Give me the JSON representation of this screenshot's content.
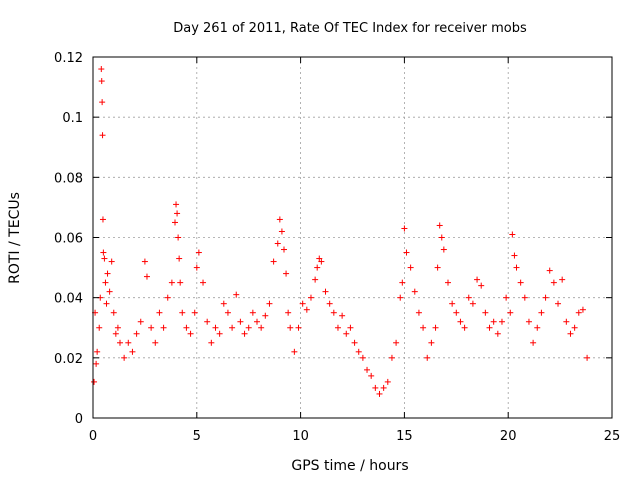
{
  "chart_data": {
    "type": "scatter",
    "title": "Day 261 of 2011, Rate Of TEC Index for receiver mobs",
    "xlabel": "GPS time / hours",
    "ylabel": "ROTI / TECUs",
    "xlim": [
      0,
      25
    ],
    "ylim": [
      0,
      0.12
    ],
    "xticks": [
      0,
      5,
      10,
      15,
      20,
      25
    ],
    "xtick_labels": [
      "0",
      "5",
      "10",
      "15",
      "20",
      "25"
    ],
    "yticks": [
      0,
      0.02,
      0.04,
      0.06,
      0.08,
      0.1,
      0.12
    ],
    "ytick_labels": [
      "0",
      "0.02",
      "0.04",
      "0.06",
      "0.08",
      "0.1",
      "0.12"
    ],
    "grid": true,
    "marker": "+",
    "color": "#ff0000",
    "series": [
      {
        "name": "ROTI",
        "x": [
          0.05,
          0.1,
          0.15,
          0.2,
          0.3,
          0.35,
          0.4,
          0.42,
          0.44,
          0.46,
          0.48,
          0.5,
          0.55,
          0.6,
          0.65,
          0.7,
          0.8,
          0.9,
          1.0,
          1.1,
          1.2,
          1.3,
          1.5,
          1.7,
          1.9,
          2.1,
          2.3,
          2.5,
          2.6,
          2.8,
          3.0,
          3.2,
          3.4,
          3.6,
          3.8,
          3.95,
          4.0,
          4.05,
          4.1,
          4.15,
          4.2,
          4.3,
          4.5,
          4.7,
          4.9,
          5.0,
          5.1,
          5.3,
          5.5,
          5.7,
          5.9,
          6.1,
          6.3,
          6.5,
          6.7,
          6.9,
          7.1,
          7.3,
          7.5,
          7.7,
          7.9,
          8.1,
          8.3,
          8.5,
          8.7,
          8.9,
          9.0,
          9.1,
          9.2,
          9.3,
          9.4,
          9.5,
          9.7,
          9.9,
          10.1,
          10.3,
          10.5,
          10.7,
          10.8,
          10.9,
          11.0,
          11.2,
          11.4,
          11.6,
          11.8,
          12.0,
          12.2,
          12.4,
          12.6,
          12.8,
          13.0,
          13.2,
          13.4,
          13.6,
          13.8,
          14.0,
          14.2,
          14.4,
          14.6,
          14.8,
          14.9,
          15.0,
          15.1,
          15.3,
          15.5,
          15.7,
          15.9,
          16.1,
          16.3,
          16.5,
          16.6,
          16.7,
          16.8,
          16.9,
          17.1,
          17.3,
          17.5,
          17.7,
          17.9,
          18.1,
          18.3,
          18.5,
          18.7,
          18.9,
          19.1,
          19.3,
          19.5,
          19.7,
          19.9,
          20.1,
          20.2,
          20.3,
          20.4,
          20.6,
          20.8,
          21.0,
          21.2,
          21.4,
          21.6,
          21.8,
          22.0,
          22.2,
          22.4,
          22.6,
          22.8,
          23.0,
          23.2,
          23.4,
          23.6,
          23.8
        ],
        "y": [
          0.012,
          0.035,
          0.018,
          0.022,
          0.03,
          0.04,
          0.116,
          0.112,
          0.105,
          0.094,
          0.066,
          0.055,
          0.053,
          0.045,
          0.038,
          0.048,
          0.042,
          0.052,
          0.035,
          0.028,
          0.03,
          0.025,
          0.02,
          0.025,
          0.022,
          0.028,
          0.032,
          0.052,
          0.047,
          0.03,
          0.025,
          0.035,
          0.03,
          0.04,
          0.045,
          0.065,
          0.071,
          0.068,
          0.06,
          0.053,
          0.045,
          0.035,
          0.03,
          0.028,
          0.035,
          0.05,
          0.055,
          0.045,
          0.032,
          0.025,
          0.03,
          0.028,
          0.038,
          0.035,
          0.03,
          0.041,
          0.032,
          0.028,
          0.03,
          0.035,
          0.032,
          0.03,
          0.034,
          0.038,
          0.052,
          0.058,
          0.066,
          0.062,
          0.056,
          0.048,
          0.035,
          0.03,
          0.022,
          0.03,
          0.038,
          0.036,
          0.04,
          0.046,
          0.05,
          0.053,
          0.052,
          0.042,
          0.038,
          0.035,
          0.03,
          0.034,
          0.028,
          0.03,
          0.025,
          0.022,
          0.02,
          0.016,
          0.014,
          0.01,
          0.008,
          0.01,
          0.012,
          0.02,
          0.025,
          0.04,
          0.045,
          0.063,
          0.055,
          0.05,
          0.042,
          0.035,
          0.03,
          0.02,
          0.025,
          0.03,
          0.05,
          0.064,
          0.06,
          0.056,
          0.045,
          0.038,
          0.035,
          0.032,
          0.03,
          0.04,
          0.038,
          0.046,
          0.044,
          0.035,
          0.03,
          0.032,
          0.028,
          0.032,
          0.04,
          0.035,
          0.061,
          0.054,
          0.05,
          0.045,
          0.04,
          0.032,
          0.025,
          0.03,
          0.035,
          0.04,
          0.049,
          0.045,
          0.038,
          0.046,
          0.032,
          0.028,
          0.03,
          0.035,
          0.036,
          0.02
        ]
      }
    ]
  }
}
